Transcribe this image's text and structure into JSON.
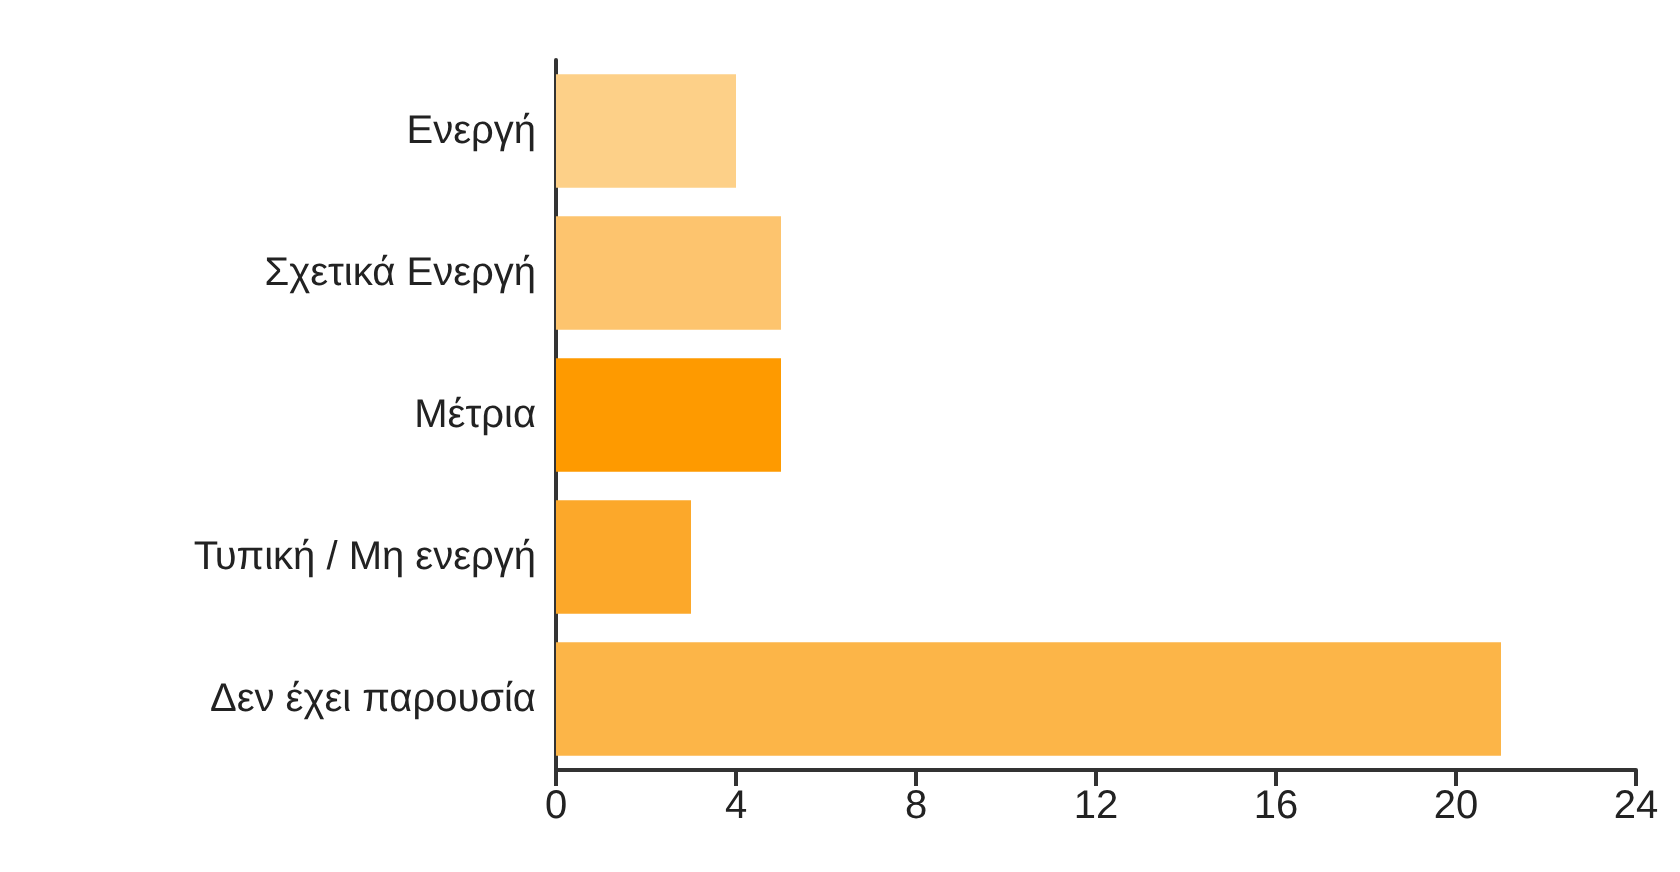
{
  "chart_data": {
    "type": "bar",
    "orientation": "horizontal",
    "categories": [
      "Ενεργή",
      "Σχετικά Ενεργή",
      "Μέτρια",
      "Τυπική / Μη ενεργή",
      "Δεν έχει παρουσία"
    ],
    "values": [
      4,
      5,
      5,
      3,
      21
    ],
    "colors": [
      "#fdd088",
      "#fdc46e",
      "#fe9a00",
      "#fca82a",
      "#fcb548"
    ],
    "xlim": [
      0,
      24
    ],
    "xticks": [
      0,
      4,
      8,
      12,
      16,
      20,
      24
    ],
    "grid": false
  }
}
